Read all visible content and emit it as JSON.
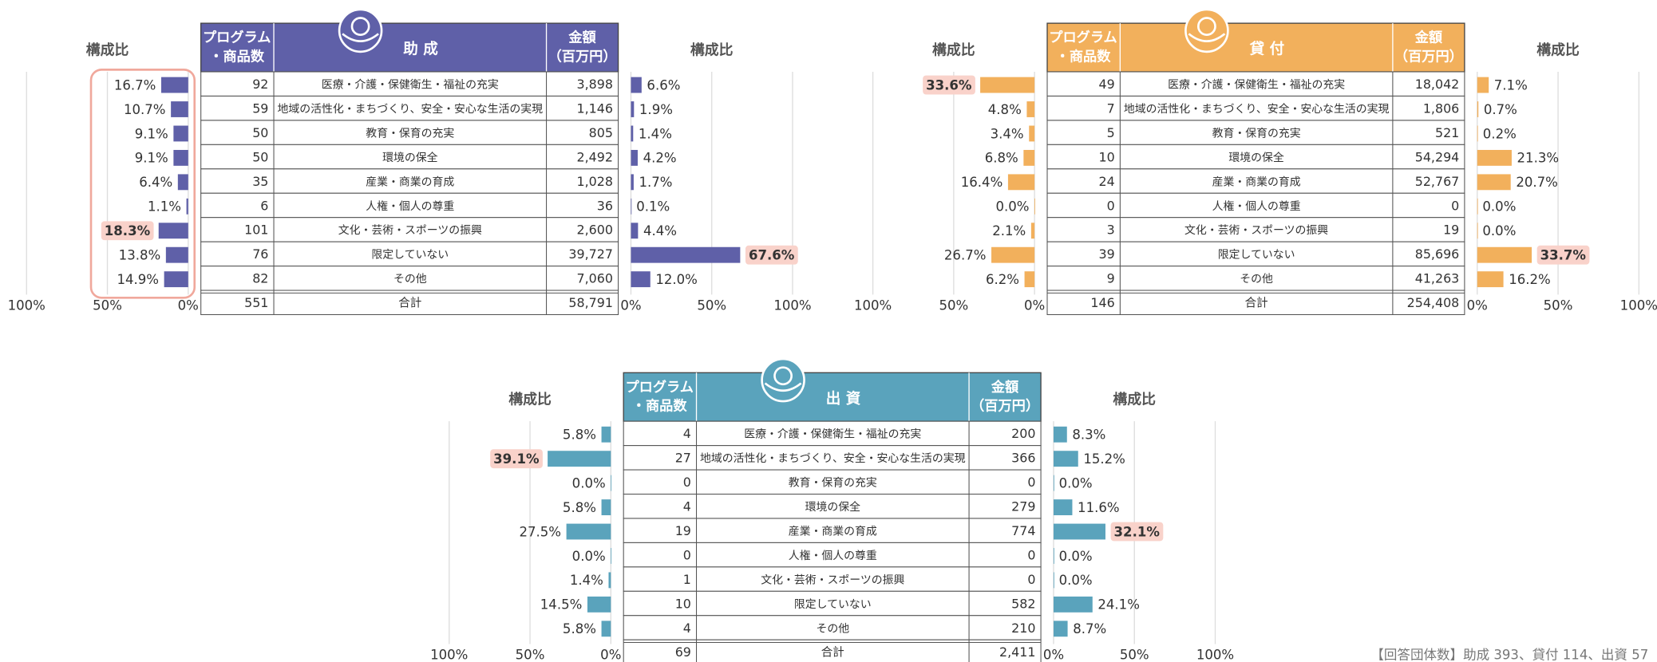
{
  "footnote": "【回答団体数】助成 393、貸付 114、出資 57",
  "panels": [
    {
      "title": "助 成",
      "color": "#5f60a8",
      "header_count": [
        "プログラム",
        "・商品数"
      ],
      "header_amount": [
        "金額",
        "（百万円）"
      ],
      "categories": [
        "医療・介護・保健衛生・福祉の充実",
        "地域の活性化・まちづくり、安全・安心な生活の実現",
        "教育・保育の充実",
        "環境の保全",
        "産業・商業の育成",
        "人権・個人の尊重",
        "文化・芸術・スポーツの振興",
        "限定していない",
        "その他"
      ],
      "counts": [
        "92",
        "59",
        "50",
        "50",
        "35",
        "6",
        "101",
        "76",
        "82"
      ],
      "amounts": [
        "3,898",
        "1,146",
        "805",
        "2,492",
        "1,028",
        "36",
        "2,600",
        "39,727",
        "7,060"
      ],
      "total_label": "合計",
      "total_count": "551",
      "total_amount": "58,791",
      "count_share": {
        "type": "bar",
        "title": "構成比",
        "values": [
          16.7,
          10.7,
          9.1,
          9.1,
          6.4,
          1.1,
          18.3,
          13.8,
          14.9
        ],
        "value_labels": [
          "16.7%",
          "10.7%",
          "9.1%",
          "9.1%",
          "6.4%",
          "1.1%",
          "18.3%",
          "13.8%",
          "14.9%"
        ],
        "highlight": 6,
        "xlim": [
          0,
          100
        ],
        "xticks": [
          {
            "value": 100,
            "label": "100%"
          },
          {
            "value": 50,
            "label": "50%"
          },
          {
            "value": 0,
            "label": "0%"
          }
        ],
        "grid": true
      },
      "amount_share": {
        "type": "bar",
        "title": "構成比",
        "values": [
          6.6,
          1.9,
          1.4,
          4.2,
          1.7,
          0.1,
          4.4,
          67.6,
          12.0
        ],
        "value_labels": [
          "6.6%",
          "1.9%",
          "1.4%",
          "4.2%",
          "1.7%",
          "0.1%",
          "4.4%",
          "67.6%",
          "12.0%"
        ],
        "highlight": 7,
        "xlim": [
          0,
          100
        ],
        "xticks": [
          {
            "value": 0,
            "label": "0%"
          },
          {
            "value": 50,
            "label": "50%"
          },
          {
            "value": 100,
            "label": "100%"
          }
        ],
        "grid": true
      }
    },
    {
      "title": "貸 付",
      "color": "#f2b05c",
      "header_count": [
        "プログラム",
        "・商品数"
      ],
      "header_amount": [
        "金額",
        "（百万円）"
      ],
      "categories": [
        "医療・介護・保健衛生・福祉の充実",
        "地域の活性化・まちづくり、安全・安心な生活の実現",
        "教育・保育の充実",
        "環境の保全",
        "産業・商業の育成",
        "人権・個人の尊重",
        "文化・芸術・スポーツの振興",
        "限定していない",
        "その他"
      ],
      "counts": [
        "49",
        "7",
        "5",
        "10",
        "24",
        "0",
        "3",
        "39",
        "9"
      ],
      "amounts": [
        "18,042",
        "1,806",
        "521",
        "54,294",
        "52,767",
        "0",
        "19",
        "85,696",
        "41,263"
      ],
      "total_label": "合計",
      "total_count": "146",
      "total_amount": "254,408",
      "count_share": {
        "type": "bar",
        "title": "構成比",
        "values": [
          33.6,
          4.8,
          3.4,
          6.8,
          16.4,
          0.0,
          2.1,
          26.7,
          6.2
        ],
        "value_labels": [
          "33.6%",
          "4.8%",
          "3.4%",
          "6.8%",
          "16.4%",
          "0.0%",
          "2.1%",
          "26.7%",
          "6.2%"
        ],
        "highlight": 0,
        "xlim": [
          0,
          100
        ],
        "xticks": [
          {
            "value": 100,
            "label": "100%"
          },
          {
            "value": 50,
            "label": "50%"
          },
          {
            "value": 0,
            "label": "0%"
          }
        ],
        "grid": true
      },
      "amount_share": {
        "type": "bar",
        "title": "構成比",
        "values": [
          7.1,
          0.7,
          0.2,
          21.3,
          20.7,
          0.0,
          0.0,
          33.7,
          16.2
        ],
        "value_labels": [
          "7.1%",
          "0.7%",
          "0.2%",
          "21.3%",
          "20.7%",
          "0.0%",
          "0.0%",
          "33.7%",
          "16.2%"
        ],
        "highlight": 7,
        "xlim": [
          0,
          100
        ],
        "xticks": [
          {
            "value": 0,
            "label": "0%"
          },
          {
            "value": 50,
            "label": "50%"
          },
          {
            "value": 100,
            "label": "100%"
          }
        ],
        "grid": true
      }
    },
    {
      "title": "出 資",
      "color": "#5aa3bc",
      "header_count": [
        "プログラム",
        "・商品数"
      ],
      "header_amount": [
        "金額",
        "（百万円）"
      ],
      "categories": [
        "医療・介護・保健衛生・福祉の充実",
        "地域の活性化・まちづくり、安全・安心な生活の実現",
        "教育・保育の充実",
        "環境の保全",
        "産業・商業の育成",
        "人権・個人の尊重",
        "文化・芸術・スポーツの振興",
        "限定していない",
        "その他"
      ],
      "counts": [
        "4",
        "27",
        "0",
        "4",
        "19",
        "0",
        "1",
        "10",
        "4"
      ],
      "amounts": [
        "200",
        "366",
        "0",
        "279",
        "774",
        "0",
        "0",
        "582",
        "210"
      ],
      "total_label": "合計",
      "total_count": "69",
      "total_amount": "2,411",
      "count_share": {
        "type": "bar",
        "title": "構成比",
        "values": [
          5.8,
          39.1,
          0.0,
          5.8,
          27.5,
          0.0,
          1.4,
          14.5,
          5.8
        ],
        "value_labels": [
          "5.8%",
          "39.1%",
          "0.0%",
          "5.8%",
          "27.5%",
          "0.0%",
          "1.4%",
          "14.5%",
          "5.8%"
        ],
        "highlight": 1,
        "xlim": [
          0,
          100
        ],
        "xticks": [
          {
            "value": 100,
            "label": "100%"
          },
          {
            "value": 50,
            "label": "50%"
          },
          {
            "value": 0,
            "label": "0%"
          }
        ],
        "grid": true
      },
      "amount_share": {
        "type": "bar",
        "title": "構成比",
        "values": [
          8.3,
          15.2,
          0.0,
          11.6,
          32.1,
          0.0,
          0.0,
          24.1,
          8.7
        ],
        "value_labels": [
          "8.3%",
          "15.2%",
          "0.0%",
          "11.6%",
          "32.1%",
          "0.0%",
          "0.0%",
          "24.1%",
          "8.7%"
        ],
        "highlight": 4,
        "xlim": [
          0,
          100
        ],
        "xticks": [
          {
            "value": 0,
            "label": "0%"
          },
          {
            "value": 50,
            "label": "50%"
          },
          {
            "value": 100,
            "label": "100%"
          }
        ],
        "grid": true
      }
    }
  ]
}
